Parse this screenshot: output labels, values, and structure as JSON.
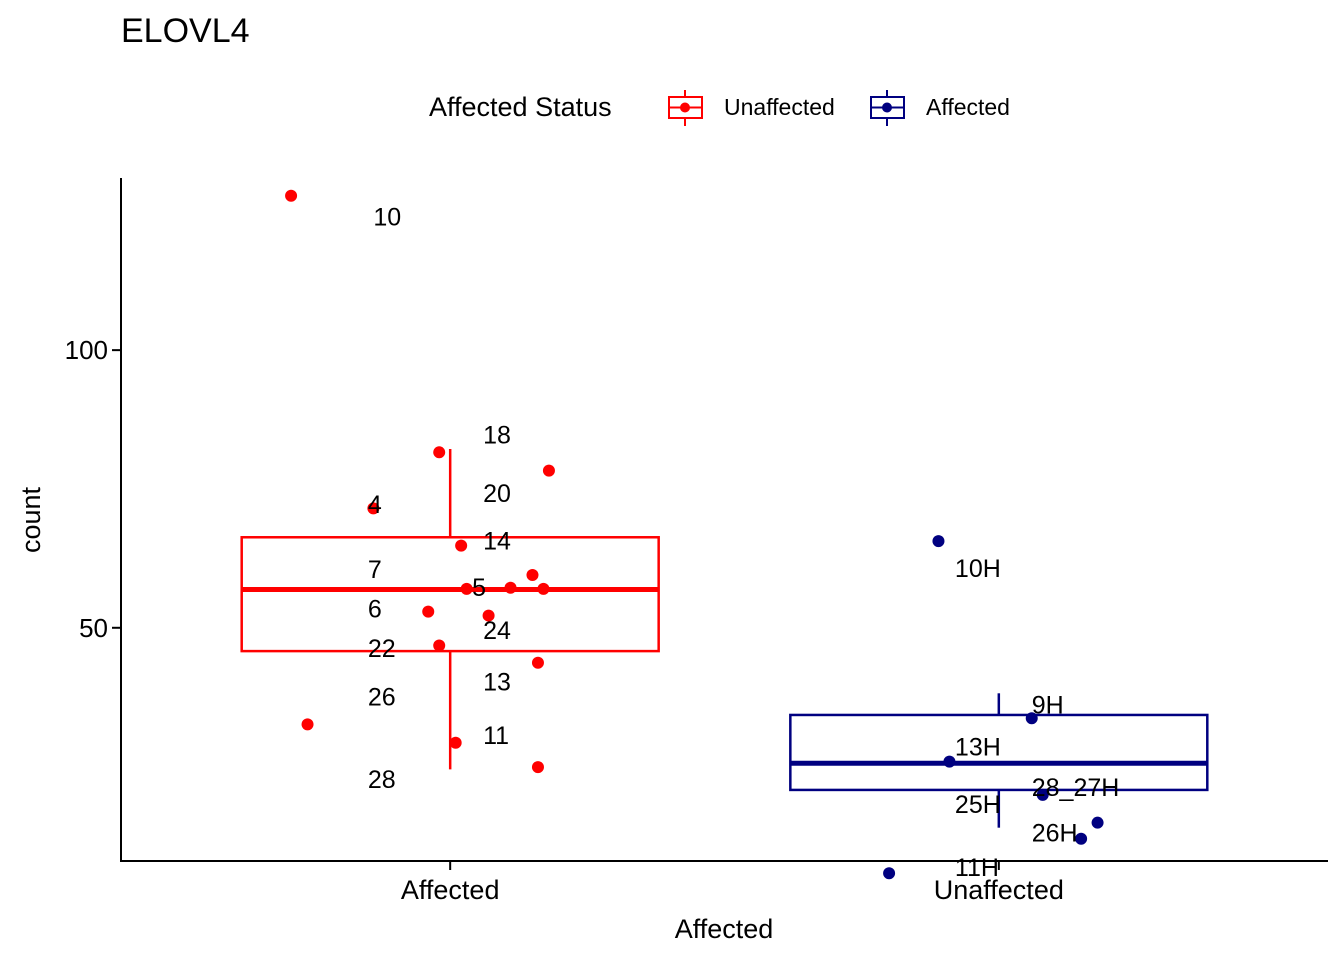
{
  "chart_data": {
    "type": "boxplot",
    "title": "ELOVL4",
    "xlabel": "Affected",
    "ylabel": "count",
    "ylim": [
      8,
      131
    ],
    "yticks": [
      50,
      100
    ],
    "categories": [
      "Affected",
      "Unaffected"
    ],
    "legend": {
      "title": "Affected Status",
      "position": "top",
      "entries": [
        {
          "label": "Unaffected",
          "color": "#ff0000"
        },
        {
          "label": "Affected",
          "color": "#000080"
        }
      ]
    },
    "boxes": [
      {
        "category": "Affected",
        "color": "#ff0000",
        "whisker_low": 24.5,
        "q1": 45.8,
        "median": 56.9,
        "q3": 66.3,
        "whisker_high": 82.2
      },
      {
        "category": "Unaffected",
        "color": "#000080",
        "whisker_low": 14,
        "q1": 20.8,
        "median": 25.6,
        "q3": 34.3,
        "whisker_high": 38.2
      }
    ],
    "points": [
      {
        "category": "Affected",
        "x": 0.71,
        "y": 127.8
      },
      {
        "category": "Affected",
        "x": 0.98,
        "y": 81.6
      },
      {
        "category": "Affected",
        "x": 1.18,
        "y": 78.3
      },
      {
        "category": "Affected",
        "x": 0.86,
        "y": 71.5
      },
      {
        "category": "Affected",
        "x": 1.02,
        "y": 64.8
      },
      {
        "category": "Affected",
        "x": 1.15,
        "y": 59.5
      },
      {
        "category": "Affected",
        "x": 1.03,
        "y": 57.0
      },
      {
        "category": "Affected",
        "x": 1.11,
        "y": 57.2
      },
      {
        "category": "Affected",
        "x": 1.17,
        "y": 57.0
      },
      {
        "category": "Affected",
        "x": 0.96,
        "y": 52.9
      },
      {
        "category": "Affected",
        "x": 1.07,
        "y": 52.2
      },
      {
        "category": "Affected",
        "x": 0.98,
        "y": 46.8
      },
      {
        "category": "Affected",
        "x": 1.16,
        "y": 43.7
      },
      {
        "category": "Affected",
        "x": 0.74,
        "y": 32.6
      },
      {
        "category": "Affected",
        "x": 1.01,
        "y": 29.3
      },
      {
        "category": "Affected",
        "x": 1.16,
        "y": 24.9
      },
      {
        "category": "Unaffected",
        "x": 1.89,
        "y": 65.6
      },
      {
        "category": "Unaffected",
        "x": 2.06,
        "y": 33.7
      },
      {
        "category": "Unaffected",
        "x": 1.91,
        "y": 25.9
      },
      {
        "category": "Unaffected",
        "x": 2.08,
        "y": 19.9
      },
      {
        "category": "Unaffected",
        "x": 2.18,
        "y": 14.9
      },
      {
        "category": "Unaffected",
        "x": 2.15,
        "y": 12.0
      },
      {
        "category": "Unaffected",
        "x": 1.8,
        "y": 5.8
      }
    ],
    "annotations": [
      {
        "text": "10",
        "x": 0.86,
        "y": 124.1
      },
      {
        "text": "18",
        "x": 1.06,
        "y": 84.8
      },
      {
        "text": "20",
        "x": 1.06,
        "y": 74.3
      },
      {
        "text": "4",
        "x": 0.85,
        "y": 72.3
      },
      {
        "text": "14",
        "x": 1.06,
        "y": 65.7
      },
      {
        "text": "7",
        "x": 0.85,
        "y": 60.6
      },
      {
        "text": "5",
        "x": 1.04,
        "y": 57.3
      },
      {
        "text": "6",
        "x": 0.85,
        "y": 53.5
      },
      {
        "text": "24",
        "x": 1.06,
        "y": 49.6
      },
      {
        "text": "22",
        "x": 0.85,
        "y": 46.4
      },
      {
        "text": "13",
        "x": 1.06,
        "y": 40.3
      },
      {
        "text": "26",
        "x": 0.85,
        "y": 37.6
      },
      {
        "text": "11",
        "x": 1.06,
        "y": 30.7
      },
      {
        "text": "28",
        "x": 0.85,
        "y": 22.8
      },
      {
        "text": "10H",
        "x": 1.92,
        "y": 60.8
      },
      {
        "text": "9H",
        "x": 2.06,
        "y": 36.2
      },
      {
        "text": "13H",
        "x": 1.92,
        "y": 28.6
      },
      {
        "text": "28_27H",
        "x": 2.06,
        "y": 21.3
      },
      {
        "text": "25H",
        "x": 1.92,
        "y": 18.3
      },
      {
        "text": "26H",
        "x": 2.06,
        "y": 13.1
      },
      {
        "text": "11H",
        "x": 1.92,
        "y": 6.9
      }
    ]
  }
}
